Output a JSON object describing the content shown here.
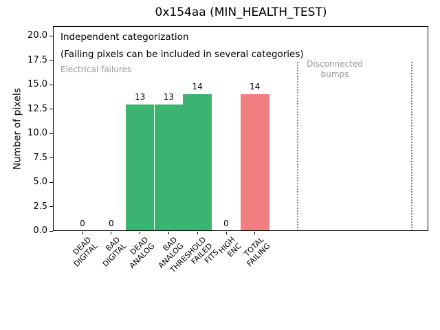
{
  "chart_data": {
    "type": "bar",
    "title": "0x154aa (MIN_HEALTH_TEST)",
    "ylabel": "Number of pixels",
    "xlabel": "",
    "ylim": [
      0,
      21
    ],
    "yticks": [
      "0.0",
      "2.5",
      "5.0",
      "7.5",
      "10.0",
      "12.5",
      "15.0",
      "17.5",
      "20.0"
    ],
    "categories": [
      "DEAD\nDIGITAL",
      "BAD\nDIGITAL",
      "DEAD\nANALOG",
      "BAD\nANALOG",
      "THRESHOLD\nFAILED\nFITS",
      "HIGH\nENC",
      "TOTAL\nFAILING"
    ],
    "values": [
      0,
      0,
      13,
      13,
      14,
      0,
      14
    ],
    "bar_labels": [
      "0",
      "0",
      "13",
      "13",
      "14",
      "0",
      "14"
    ],
    "bar_colors": [
      "#3cb371",
      "#3cb371",
      "#3cb371",
      "#3cb371",
      "#3cb371",
      "#3cb371",
      "#f08080"
    ],
    "grid": false,
    "legend": "none",
    "section_separators_x": [
      7.48,
      11.45
    ],
    "annotations": {
      "line1": "Independent categorization",
      "line2": "(Failing pixels can be included in several categories)",
      "left_section": "Electrical failures",
      "right_section": "Disconnected\nbumps"
    },
    "colors": {
      "electrical_bar_green": "#3cb371",
      "total_failing_bar_red": "#f08080",
      "muted_text_gray": "#999999",
      "separator_gray": "#888888",
      "axis_black": "#000000"
    }
  }
}
